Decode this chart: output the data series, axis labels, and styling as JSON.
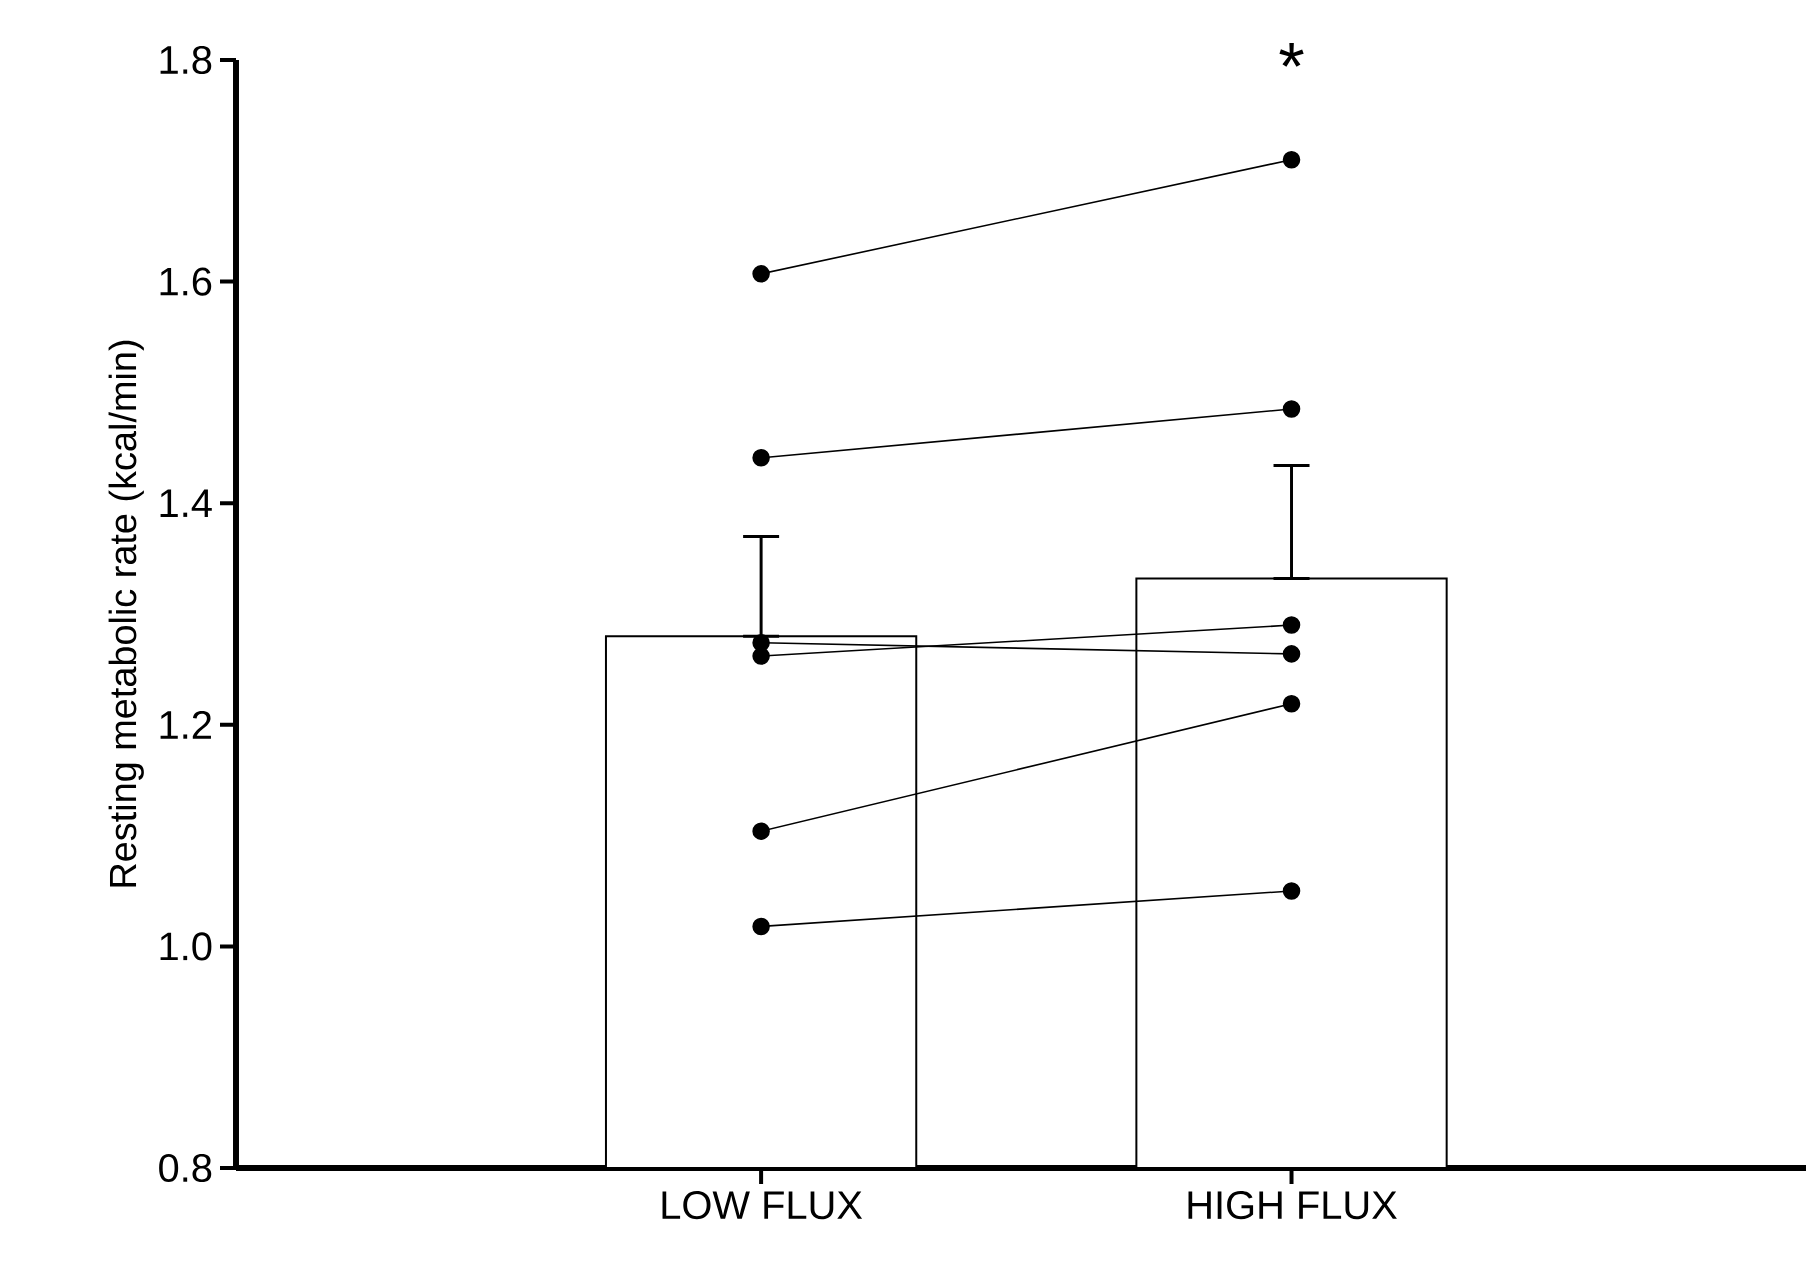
{
  "chart_data": {
    "type": "bar",
    "ylabel": "Resting metabolic rate (kcal/min)",
    "categories": [
      "LOW FLUX",
      "HIGH FLUX"
    ],
    "series": [
      {
        "color": "#ffffff",
        "values": [
          1.28,
          1.332
        ],
        "errors": [
          [
            1.28,
            1.37
          ],
          [
            1.332,
            1.434
          ]
        ]
      },
      {
        "type": "line",
        "color": "#000000",
        "values": [
          1.607,
          1.71
        ]
      },
      {
        "type": "line",
        "color": "#000000",
        "values": [
          1.441,
          1.485
        ]
      },
      {
        "type": "line",
        "color": "#000000",
        "values": [
          1.274,
          1.264
        ]
      },
      {
        "type": "line",
        "color": "#000000",
        "values": [
          1.262,
          1.29
        ]
      },
      {
        "type": "line",
        "color": "#000000",
        "values": [
          1.104,
          1.219
        ]
      },
      {
        "type": "line",
        "color": "#000000",
        "values": [
          1.018,
          1.05
        ]
      }
    ],
    "ylim": [
      0.8,
      1.8
    ],
    "yticks": [
      {
        "value": 0.8,
        "label": "0.8"
      },
      {
        "value": 1.0,
        "label": "1.0"
      },
      {
        "value": 1.2,
        "label": "1.2"
      },
      {
        "value": 1.4,
        "label": "1.4"
      },
      {
        "value": 1.6,
        "label": "1.6"
      },
      {
        "value": 1.8,
        "label": "1.8"
      }
    ],
    "marker": "circle",
    "grid": false,
    "annotations": [
      "*"
    ]
  }
}
